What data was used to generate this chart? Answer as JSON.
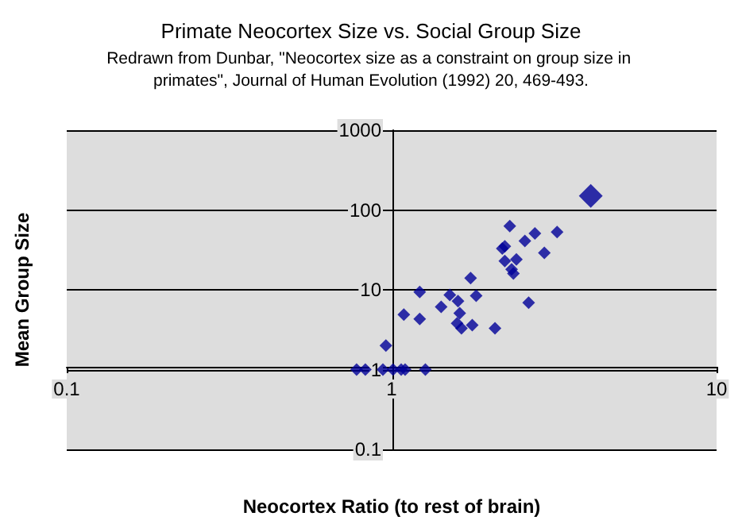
{
  "chart_data": {
    "type": "scatter",
    "title": "Primate Neocortex Size vs. Social Group Size",
    "subtitle": "Redrawn from Dunbar, \"Neocortex size as a constraint on group size in primates\", Journal of Human Evolution (1992) 20, 469-493.",
    "xlabel": "Neocortex Ratio (to rest of brain)",
    "ylabel": "Mean Group Size",
    "log": "xy",
    "grid": "y",
    "marker": "diamond",
    "xlim": [
      0.1,
      10
    ],
    "xticks": [
      0.1,
      1,
      10
    ],
    "ylim": [
      0.1,
      1000
    ],
    "yticks": [
      0.1,
      1,
      10,
      100,
      1000
    ],
    "series": [
      {
        "color": "#000099",
        "x": [
          0.78,
          0.83,
          0.94,
          1.01,
          1.07,
          1.1,
          1.27,
          0.96,
          1.09,
          1.22,
          1.22,
          1.42,
          1.51,
          1.6,
          1.62,
          1.59,
          1.64,
          1.77,
          1.75,
          1.82,
          2.08,
          2.31,
          2.23,
          2.19,
          2.23,
          2.42,
          2.34,
          2.37,
          2.57,
          2.76,
          2.95,
          2.64,
          3.23
        ],
        "values": [
          1,
          1,
          1,
          1,
          1,
          1,
          1,
          2,
          4.9,
          9.4,
          4.3,
          6.1,
          8.6,
          7.2,
          5.1,
          3.8,
          3.3,
          3.6,
          14,
          8.4,
          3.3,
          63,
          35,
          33,
          23,
          24,
          18,
          16,
          41,
          51,
          29,
          6.9,
          53
        ]
      },
      {
        "color": "#000099",
        "x": [
          4.1
        ],
        "values": [
          150
        ]
      }
    ]
  }
}
